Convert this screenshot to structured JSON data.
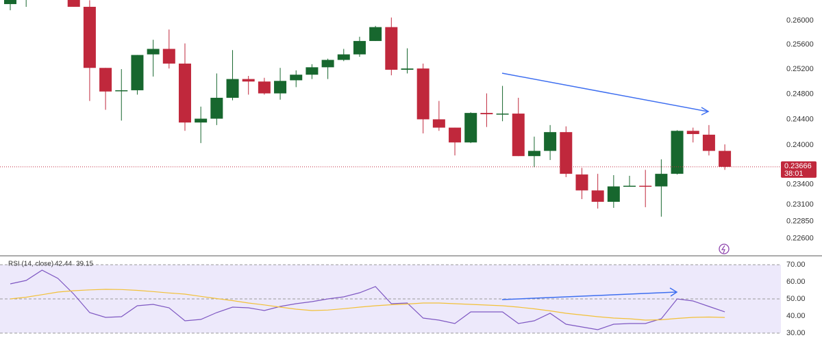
{
  "chart_data": [
    {
      "type": "candlestick",
      "log": true,
      "up_color": "#17672e",
      "down_color": "#c0283c",
      "ylim": [
        0.2237,
        0.26345
      ],
      "yticks": [
        {
          "value": 0.26,
          "label": "0.26000"
        },
        {
          "value": 0.256,
          "label": "0.25600"
        },
        {
          "value": 0.252,
          "label": "0.25200"
        },
        {
          "value": 0.248,
          "label": "0.24800"
        },
        {
          "value": 0.244,
          "label": "0.24400"
        },
        {
          "value": 0.24,
          "label": "0.24000"
        },
        {
          "value": 0.234,
          "label": "0.23400"
        },
        {
          "value": 0.231,
          "label": "0.23100"
        },
        {
          "value": 0.2285,
          "label": "0.22850"
        },
        {
          "value": 0.226,
          "label": "0.22600"
        }
      ],
      "open": [
        0.26276,
        0.26403,
        null,
        null,
        0.2646,
        0.2623,
        0.2522,
        0.2485,
        0.2486,
        0.2544,
        0.2553,
        0.2529,
        0.2435,
        0.2441,
        0.2474,
        0.2504,
        0.25,
        0.2481,
        0.2502,
        0.2511,
        0.2523,
        0.2535,
        0.2544,
        0.2566,
        0.2589,
        0.2519,
        0.2521,
        0.244,
        0.2427,
        0.2404,
        0.245,
        0.2448,
        0.2449,
        0.2383,
        0.2391,
        0.242,
        0.2355,
        0.2331,
        0.2314,
        0.2337,
        0.2338,
        0.2337,
        0.2356,
        0.2422,
        0.2416,
        0.2391
      ],
      "high": [
        0.2646,
        0.26579,
        null,
        null,
        0.2652,
        0.2634,
        0.2522,
        0.252,
        0.2543,
        0.2568,
        0.2585,
        0.2562,
        0.246,
        0.2513,
        0.2551,
        0.2509,
        0.2506,
        0.2522,
        0.2518,
        0.2528,
        0.2537,
        0.2553,
        0.2573,
        0.2591,
        0.2605,
        0.2554,
        0.2529,
        0.2469,
        0.2427,
        0.2451,
        0.2481,
        0.2493,
        0.2474,
        0.2413,
        0.2431,
        0.2429,
        0.2365,
        0.2356,
        0.2354,
        0.2353,
        0.2362,
        0.2378,
        0.2423,
        0.2427,
        0.2431,
        0.2401
      ],
      "low": [
        0.26172,
        0.26229,
        null,
        null,
        0.2623,
        0.2469,
        0.2455,
        0.2438,
        0.2479,
        0.2508,
        0.2521,
        0.2422,
        0.2403,
        0.2431,
        0.247,
        0.2479,
        0.2479,
        0.2471,
        0.2491,
        0.2504,
        0.2504,
        0.2533,
        0.254,
        0.2566,
        0.251,
        0.2513,
        0.2418,
        0.2422,
        0.2384,
        0.2403,
        0.2428,
        0.2437,
        0.2383,
        0.2366,
        0.2377,
        0.2351,
        0.2318,
        0.2304,
        0.2305,
        0.2337,
        0.2306,
        0.2292,
        0.2355,
        0.2404,
        0.2384,
        0.2362
      ],
      "close": [
        0.26368,
        0.2652,
        null,
        null,
        0.2623,
        0.2522,
        0.2484,
        0.2486,
        0.2543,
        0.2553,
        0.2529,
        0.2435,
        0.2441,
        0.2474,
        0.2504,
        0.25,
        0.2481,
        0.2501,
        0.2511,
        0.2523,
        0.2535,
        0.2544,
        0.2566,
        0.2589,
        0.2519,
        0.2521,
        0.244,
        0.2427,
        0.2404,
        0.245,
        0.2448,
        0.2449,
        0.2383,
        0.2391,
        0.242,
        0.2356,
        0.2331,
        0.2314,
        0.2337,
        0.2338,
        0.2337,
        0.2356,
        0.2422,
        0.2417,
        0.2391,
        0.23666
      ],
      "countdown": "38:01"
    },
    {
      "type": "line",
      "title": "RSI (14, close)",
      "ylim": [
        28,
        74
      ],
      "yticks": [
        {
          "value": 70,
          "label": "70.00"
        },
        {
          "value": 60,
          "label": "60.00"
        },
        {
          "value": 50,
          "label": "50.00"
        },
        {
          "value": 40,
          "label": "40.00"
        },
        {
          "value": 30,
          "label": "30.00"
        }
      ],
      "band": [
        30,
        70
      ],
      "levels": [
        70,
        50,
        30
      ],
      "band_color": "#ede9fb",
      "series": [
        {
          "name": "RSI",
          "color": "#7e57c2",
          "values": [
            58.8,
            60.8,
            66.8,
            62,
            52.8,
            42,
            39.2,
            39.6,
            46,
            46.8,
            44.8,
            37.2,
            38,
            42,
            45.2,
            44.8,
            43.2,
            45.6,
            47.2,
            48.4,
            50,
            51.2,
            53.6,
            57.2,
            47.2,
            47.6,
            38.8,
            37.6,
            35.6,
            42.4,
            42.4,
            42.4,
            35.6,
            37.2,
            41.6,
            35.2,
            33.6,
            32,
            35.2,
            35.6,
            35.6,
            38.4,
            50,
            48.8,
            45.6,
            42.44
          ]
        },
        {
          "name": "MA",
          "color": "#f2c037",
          "values": [
            50,
            51,
            52.5,
            54,
            54.8,
            55.3,
            55.6,
            55.5,
            55,
            54.3,
            53.5,
            52.8,
            51.5,
            50.2,
            49,
            47.6,
            46.5,
            45.2,
            44,
            43.2,
            43.5,
            44.3,
            45.2,
            46,
            46.6,
            47,
            47.6,
            47.6,
            47.2,
            46.8,
            46.4,
            46,
            45.2,
            44.2,
            43,
            41.6,
            40.6,
            39.6,
            38.8,
            38.4,
            37.6,
            37.8,
            38.6,
            39.2,
            39.4,
            39.15
          ]
        }
      ]
    }
  ]
}
